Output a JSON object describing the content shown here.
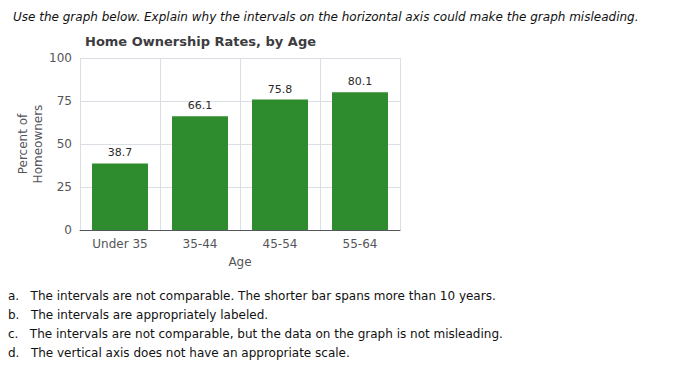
{
  "chart_data": {
    "type": "bar",
    "title": "Home Ownership Rates, by Age",
    "subtitle": "Use the graph below. Explain why the intervals on the horizontal axis could make the graph misleading.",
    "annotations": [
      "a.   The intervals are not comparable. The shorter bar spans more than 10 years.",
      "b.   The intervals are appropriately labeled.",
      "c.   The intervals are not comparable, but the data on the graph is not misleading.",
      "d.   The vertical axis does not have an appropriate scale."
    ],
    "x_label": "Age",
    "y_label": "Percent of\nHomeowners",
    "categories": [
      "Under 35",
      "35-44",
      "45-54",
      "55-64"
    ],
    "values": [
      38.7,
      66.1,
      75.8,
      80.1
    ],
    "color": "#2e8b2e",
    "ylim": [
      0,
      100
    ],
    "yticks": [
      0,
      25,
      50,
      75,
      100
    ],
    "grid": true,
    "data_labels": true
  }
}
